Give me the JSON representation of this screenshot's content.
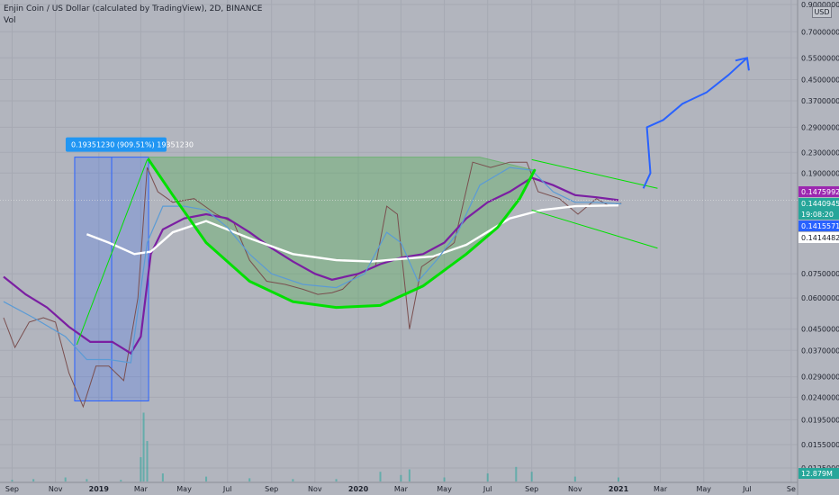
{
  "header": {
    "title": "Enjin Coin / US Dollar (calculated by TradingView), 2D, BINANCE",
    "indicator": "Vol"
  },
  "currency_badge": "USD",
  "measure_label": "0.19351230 (909.51%) 19351230",
  "price_tags": [
    {
      "text": "0.14759923",
      "bg": "#9c27b0",
      "fg": "#ffffff"
    },
    {
      "text": "0.14409455",
      "bg": "#26a69a",
      "fg": "#ffffff"
    },
    {
      "text": "19:08:20",
      "bg": "#26a69a",
      "fg": "#ffffff"
    },
    {
      "text": "0.14155711",
      "bg": "#2962ff",
      "fg": "#ffffff"
    },
    {
      "text": "0.14144820",
      "bg": "#ffffff",
      "fg": "#131722"
    }
  ],
  "chart_data": {
    "type": "line",
    "scale": "log",
    "ylim": [
      0.0115,
      0.9
    ],
    "y_ticks": [
      "0.90000000",
      "0.70000000",
      "0.55000000",
      "0.45000000",
      "0.37000000",
      "0.29000000",
      "0.23000000",
      "0.19000000",
      "0.07500000",
      "0.06000000",
      "0.04500000",
      "0.03700000",
      "0.02900000",
      "0.02400000",
      "0.01950000",
      "0.01550000",
      "0.01250000"
    ],
    "x_ticks": [
      "Sep",
      "Nov",
      "2019",
      "Mar",
      "May",
      "Jul",
      "Sep",
      "Nov",
      "2020",
      "Mar",
      "May",
      "Jul",
      "Sep",
      "Nov",
      "2021",
      "Mar",
      "May",
      "Jul",
      "Se"
    ],
    "bold_x_ticks": [
      "2019",
      "2020",
      "2021"
    ],
    "last_volume_label": "12.879M",
    "price_path": [
      [
        "2018-08-20",
        0.05
      ],
      [
        "2018-09-05",
        0.038
      ],
      [
        "2018-09-25",
        0.048
      ],
      [
        "2018-10-15",
        0.05
      ],
      [
        "2018-11-01",
        0.048
      ],
      [
        "2018-11-20",
        0.03
      ],
      [
        "2018-12-10",
        0.022
      ],
      [
        "2018-12-28",
        0.032
      ],
      [
        "2019-01-15",
        0.032
      ],
      [
        "2019-02-05",
        0.028
      ],
      [
        "2019-02-25",
        0.06
      ],
      [
        "2019-03-10",
        0.2
      ],
      [
        "2019-03-25",
        0.16
      ],
      [
        "2019-04-15",
        0.145
      ],
      [
        "2019-05-15",
        0.15
      ],
      [
        "2019-06-15",
        0.13
      ],
      [
        "2019-07-10",
        0.12
      ],
      [
        "2019-08-01",
        0.085
      ],
      [
        "2019-08-25",
        0.07
      ],
      [
        "2019-09-20",
        0.068
      ],
      [
        "2019-10-15",
        0.065
      ],
      [
        "2019-11-05",
        0.062
      ],
      [
        "2019-11-25",
        0.063
      ],
      [
        "2019-12-10",
        0.065
      ],
      [
        "2020-01-01",
        0.075
      ],
      [
        "2020-01-25",
        0.08
      ],
      [
        "2020-02-10",
        0.14
      ],
      [
        "2020-02-25",
        0.13
      ],
      [
        "2020-03-13",
        0.045
      ],
      [
        "2020-03-30",
        0.08
      ],
      [
        "2020-04-25",
        0.09
      ],
      [
        "2020-05-15",
        0.1
      ],
      [
        "2020-06-10",
        0.21
      ],
      [
        "2020-07-05",
        0.2
      ],
      [
        "2020-08-01",
        0.21
      ],
      [
        "2020-08-25",
        0.21
      ],
      [
        "2020-09-10",
        0.16
      ],
      [
        "2020-10-10",
        0.15
      ],
      [
        "2020-11-05",
        0.13
      ],
      [
        "2020-12-01",
        0.15
      ],
      [
        "2020-12-20",
        0.14
      ],
      [
        "2021-01-05",
        0.144
      ]
    ],
    "series": [
      {
        "name": "",
        "color": "#7b1fa2",
        "values": [
          [
            "2018-08-20",
            0.073
          ],
          [
            "2018-09-20",
            0.062
          ],
          [
            "2018-10-20",
            0.055
          ],
          [
            "2018-11-20",
            0.046
          ],
          [
            "2018-12-20",
            0.04
          ],
          [
            "2019-01-20",
            0.04
          ],
          [
            "2019-02-15",
            0.036
          ],
          [
            "2019-03-01",
            0.042
          ],
          [
            "2019-03-15",
            0.09
          ],
          [
            "2019-04-01",
            0.113
          ],
          [
            "2019-05-01",
            0.125
          ],
          [
            "2019-06-01",
            0.13
          ],
          [
            "2019-07-01",
            0.125
          ],
          [
            "2019-08-01",
            0.11
          ],
          [
            "2019-09-01",
            0.095
          ],
          [
            "2019-10-01",
            0.084
          ],
          [
            "2019-11-01",
            0.075
          ],
          [
            "2019-11-25",
            0.071
          ],
          [
            "2020-01-01",
            0.075
          ],
          [
            "2020-02-01",
            0.082
          ],
          [
            "2020-03-01",
            0.087
          ],
          [
            "2020-04-01",
            0.09
          ],
          [
            "2020-05-01",
            0.1
          ],
          [
            "2020-06-01",
            0.125
          ],
          [
            "2020-07-01",
            0.145
          ],
          [
            "2020-08-01",
            0.16
          ],
          [
            "2020-09-01",
            0.182
          ],
          [
            "2020-10-01",
            0.17
          ],
          [
            "2020-11-01",
            0.155
          ],
          [
            "2020-12-01",
            0.152
          ],
          [
            "2021-01-01",
            0.148
          ]
        ]
      },
      {
        "name": "",
        "color": "#ffffff",
        "values": [
          [
            "2018-12-15",
            0.108
          ],
          [
            "2019-01-15",
            0.1
          ],
          [
            "2019-02-20",
            0.09
          ],
          [
            "2019-03-15",
            0.092
          ],
          [
            "2019-04-15",
            0.11
          ],
          [
            "2019-06-01",
            0.122
          ],
          [
            "2019-08-01",
            0.104
          ],
          [
            "2019-10-01",
            0.09
          ],
          [
            "2019-12-01",
            0.085
          ],
          [
            "2020-01-20",
            0.084
          ],
          [
            "2020-03-01",
            0.086
          ],
          [
            "2020-04-15",
            0.088
          ],
          [
            "2020-06-01",
            0.098
          ],
          [
            "2020-08-01",
            0.125
          ],
          [
            "2020-09-15",
            0.135
          ],
          [
            "2020-11-01",
            0.14
          ],
          [
            "2021-01-01",
            0.141
          ]
        ]
      },
      {
        "name": "",
        "color": "#5b9bd5",
        "values": [
          [
            "2018-08-20",
            0.058
          ],
          [
            "2018-10-01",
            0.05
          ],
          [
            "2018-11-15",
            0.042
          ],
          [
            "2018-12-15",
            0.034
          ],
          [
            "2019-01-15",
            0.034
          ],
          [
            "2019-02-15",
            0.033
          ],
          [
            "2019-03-10",
            0.1
          ],
          [
            "2019-04-01",
            0.14
          ],
          [
            "2019-05-01",
            0.14
          ],
          [
            "2019-06-01",
            0.135
          ],
          [
            "2019-07-01",
            0.115
          ],
          [
            "2019-08-01",
            0.09
          ],
          [
            "2019-09-01",
            0.075
          ],
          [
            "2019-10-15",
            0.068
          ],
          [
            "2019-12-01",
            0.066
          ],
          [
            "2020-01-10",
            0.075
          ],
          [
            "2020-02-10",
            0.11
          ],
          [
            "2020-03-01",
            0.1
          ],
          [
            "2020-03-25",
            0.07
          ],
          [
            "2020-04-20",
            0.085
          ],
          [
            "2020-05-20",
            0.11
          ],
          [
            "2020-06-20",
            0.17
          ],
          [
            "2020-08-01",
            0.2
          ],
          [
            "2020-09-01",
            0.195
          ],
          [
            "2020-10-01",
            0.16
          ],
          [
            "2020-11-01",
            0.145
          ],
          [
            "2020-12-01",
            0.145
          ],
          [
            "2021-01-05",
            0.143
          ]
        ]
      }
    ],
    "volume": [
      [
        "2018-09-01",
        0.02
      ],
      [
        "2018-10-01",
        0.03
      ],
      [
        "2018-11-15",
        0.05
      ],
      [
        "2018-12-15",
        0.03
      ],
      [
        "2019-02-01",
        0.02
      ],
      [
        "2019-03-01",
        0.3
      ],
      [
        "2019-03-05",
        0.85
      ],
      [
        "2019-03-10",
        0.5
      ],
      [
        "2019-04-01",
        0.1
      ],
      [
        "2019-06-01",
        0.06
      ],
      [
        "2019-08-01",
        0.04
      ],
      [
        "2019-10-01",
        0.03
      ],
      [
        "2019-12-01",
        0.03
      ],
      [
        "2020-02-01",
        0.12
      ],
      [
        "2020-03-01",
        0.08
      ],
      [
        "2020-03-13",
        0.15
      ],
      [
        "2020-05-01",
        0.05
      ],
      [
        "2020-07-01",
        0.1
      ],
      [
        "2020-08-10",
        0.18
      ],
      [
        "2020-09-01",
        0.12
      ],
      [
        "2020-11-01",
        0.06
      ],
      [
        "2021-01-01",
        0.05
      ]
    ],
    "annotations": {
      "measure_box": {
        "from_date": "2018-11-28",
        "to_date": "2019-03-12",
        "low": 0.0232,
        "high": 0.22
      },
      "cup": {
        "rim_start": [
          "2019-03-12",
          0.22
        ],
        "rim_end": [
          "2020-06-20",
          0.22
        ],
        "bottom": [
          "2019-11-25",
          0.057
        ]
      },
      "cup_curve": [
        [
          "2019-03-12",
          0.215
        ],
        [
          "2019-04-15",
          0.155
        ],
        [
          "2019-06-01",
          0.1
        ],
        [
          "2019-08-01",
          0.07
        ],
        [
          "2019-10-01",
          0.058
        ],
        [
          "2019-12-01",
          0.055
        ],
        [
          "2020-02-01",
          0.056
        ],
        [
          "2020-04-01",
          0.067
        ],
        [
          "2020-06-01",
          0.09
        ],
        [
          "2020-07-15",
          0.115
        ],
        [
          "2020-08-15",
          0.15
        ],
        [
          "2020-09-05",
          0.195
        ]
      ],
      "green_lines": [
        [
          [
            "2018-12-01",
            0.039
          ],
          [
            "2019-03-10",
            0.215
          ]
        ],
        [
          [
            "2020-09-01",
            0.215
          ],
          [
            "2021-02-25",
            0.165
          ]
        ],
        [
          [
            "2020-09-01",
            0.135
          ],
          [
            "2021-02-25",
            0.095
          ]
        ]
      ],
      "forecast": [
        [
          "2021-02-05",
          0.165
        ],
        [
          "2021-02-15",
          0.19
        ],
        [
          "2021-02-10",
          0.29
        ],
        [
          "2021-03-05",
          0.31
        ],
        [
          "2021-04-01",
          0.36
        ],
        [
          "2021-05-05",
          0.4
        ],
        [
          "2021-06-05",
          0.47
        ],
        [
          "2021-07-01",
          0.55
        ]
      ]
    }
  }
}
